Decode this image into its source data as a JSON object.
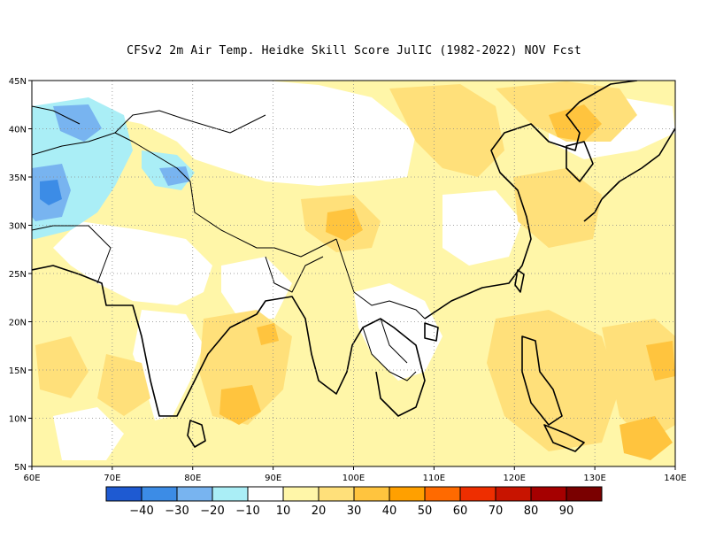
{
  "title": "CFSv2  2m Air Temp. Heidke Skill Score JulIC (1982-2022) NOV Fcst",
  "map": {
    "lon_range": [
      60,
      140
    ],
    "lat_range": [
      5,
      45
    ],
    "lon_ticks": [
      "60E",
      "70E",
      "80E",
      "90E",
      "100E",
      "110E",
      "120E",
      "130E",
      "140E"
    ],
    "lat_ticks": [
      "5N",
      "10N",
      "15N",
      "20N",
      "25N",
      "30N",
      "35N",
      "40N",
      "45N"
    ],
    "grid": true
  },
  "colorbar": {
    "colors": [
      "#1e5ad2",
      "#3c8ce6",
      "#78b4f0",
      "#aaeef6",
      "#ffffff",
      "#fff6a8",
      "#ffe07a",
      "#ffc43e",
      "#ffa000",
      "#ff6a00",
      "#ee2e00",
      "#c81400",
      "#a50000",
      "#7a0000"
    ],
    "labels": [
      "-40",
      "-30",
      "-20",
      "-10",
      "10",
      "20",
      "30",
      "40",
      "50",
      "60",
      "70",
      "80",
      "90"
    ]
  }
}
